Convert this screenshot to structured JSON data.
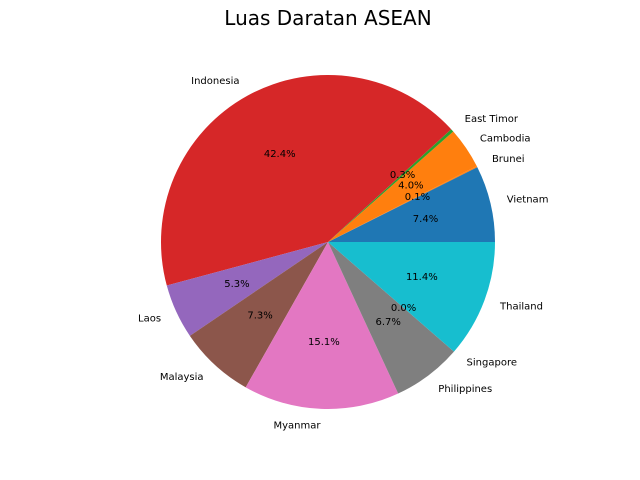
{
  "chart_data": {
    "type": "pie",
    "title": "Luas Daratan ASEAN",
    "categories": [
      "Vietnam",
      "Brunei",
      "Cambodia",
      "East Timor",
      "Indonesia",
      "Laos",
      "Malaysia",
      "Myanmar",
      "Philippines",
      "Singapore",
      "Thailand"
    ],
    "values": [
      7.4,
      0.1,
      4.0,
      0.3,
      42.4,
      5.3,
      7.3,
      15.1,
      6.7,
      0.0,
      11.4
    ],
    "percent_labels": [
      "7.4%",
      "0.1%",
      "4.0%",
      "0.3%",
      "42.4%",
      "5.3%",
      "7.3%",
      "15.1%",
      "6.7%",
      "0.0%",
      "11.4%"
    ],
    "colors": [
      "#1f77b4",
      "#ff7f0e",
      "#ff7f0e",
      "#2ca02c",
      "#d62728",
      "#9467bd",
      "#8c564b",
      "#e377c2",
      "#7f7f7f",
      "#bcbd22",
      "#17becf"
    ],
    "start_angle_deg": 0,
    "direction": "counterclockwise"
  }
}
